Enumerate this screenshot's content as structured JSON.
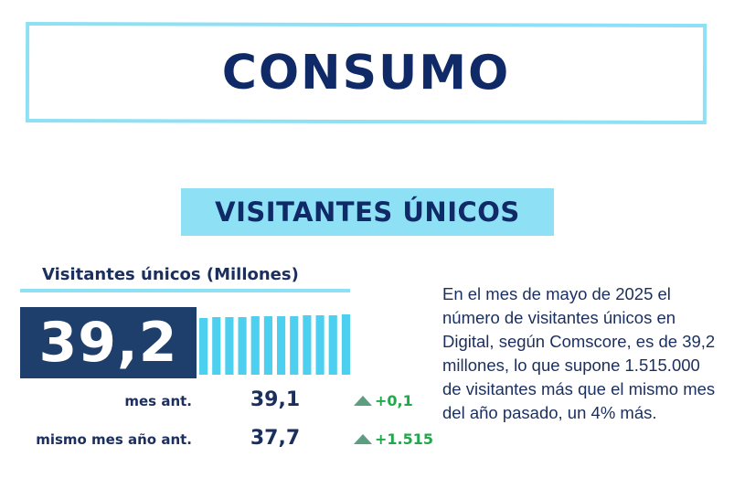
{
  "header": {
    "title": "CONSUMO"
  },
  "section": {
    "title": "VISITANTES ÚNICOS"
  },
  "metric": {
    "label": "Visitantes únicos (Millones)",
    "value": "39,2",
    "trend_bar_count": 12,
    "bar_color": "#4dd0f0"
  },
  "comparisons": [
    {
      "label": "mes ant.",
      "value": "39,1",
      "delta": "+0,1"
    },
    {
      "label": "mismo mes año ant.",
      "value": "37,7",
      "delta": "+1.515"
    }
  ],
  "description": "En el mes de mayo de 2025 el número de visitantes únicos en Digital, según Comscore, es de 39,2 millones, lo que supone 1.515.000 de visitantes más que el mismo mes del año pasado, un 4% más.",
  "colors": {
    "accent_cyan": "#8ee0f4",
    "navy": "#0f2a66",
    "value_box": "#1e3f6b",
    "positive_green": "#21a84a"
  }
}
